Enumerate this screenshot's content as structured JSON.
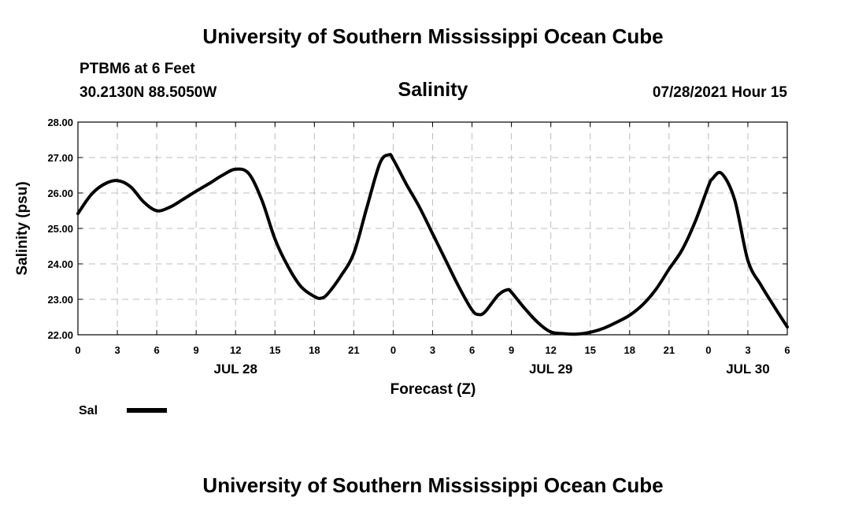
{
  "page": {
    "title_top": "University of Southern Mississippi Ocean Cube",
    "title_bottom": "University of Southern Mississippi Ocean Cube",
    "station": "PTBM6 at 6 Feet",
    "coords": "30.2130N  88.5050W",
    "subtitle": "Salinity",
    "timestamp": "07/28/2021 Hour 15"
  },
  "chart_data": {
    "type": "line",
    "title": "Salinity",
    "xlabel": "Forecast (Z)",
    "ylabel": "Salinity (psu)",
    "xlim": [
      0,
      54
    ],
    "ylim": [
      22,
      28
    ],
    "y_ticks": [
      22,
      23,
      24,
      25,
      26,
      27,
      28
    ],
    "y_tick_labels": [
      "22.00",
      "23.00",
      "24.00",
      "25.00",
      "26.00",
      "27.00",
      "28.00"
    ],
    "x_ticks": [
      0,
      3,
      6,
      9,
      12,
      15,
      18,
      21,
      24,
      27,
      30,
      33,
      36,
      39,
      42,
      45,
      48,
      51,
      54
    ],
    "x_tick_labels": [
      "0",
      "3",
      "6",
      "9",
      "12",
      "15",
      "18",
      "21",
      "0",
      "3",
      "6",
      "9",
      "12",
      "15",
      "18",
      "21",
      "0",
      "3",
      "6"
    ],
    "day_labels": [
      {
        "x": 12,
        "label": "JUL 28"
      },
      {
        "x": 36,
        "label": "JUL 29"
      },
      {
        "x": 51,
        "label": "JUL 30"
      }
    ],
    "grid": true,
    "legend": [
      {
        "name": "Sal",
        "color": "#000000"
      }
    ],
    "series": [
      {
        "name": "Sal",
        "color": "#000000",
        "x": [
          0,
          1,
          2,
          3,
          4,
          5,
          6,
          7,
          8,
          9,
          10,
          11,
          12,
          13,
          14,
          15,
          16,
          17,
          18,
          18.5,
          19,
          20,
          21,
          22,
          23,
          23.7,
          24,
          25,
          26,
          27,
          28,
          29,
          30,
          30.5,
          31,
          32,
          32.7,
          33,
          34,
          35,
          36,
          37,
          38,
          39,
          40,
          41,
          42,
          43,
          44,
          45,
          46,
          47,
          48,
          48.3,
          49,
          50,
          51,
          52,
          53,
          54
        ],
        "values": [
          25.42,
          25.95,
          26.25,
          26.35,
          26.18,
          25.75,
          25.5,
          25.6,
          25.82,
          26.05,
          26.27,
          26.5,
          26.67,
          26.55,
          25.8,
          24.7,
          23.92,
          23.35,
          23.08,
          23.03,
          23.15,
          23.65,
          24.3,
          25.6,
          26.85,
          27.08,
          26.95,
          26.25,
          25.6,
          24.85,
          24.1,
          23.35,
          22.7,
          22.57,
          22.65,
          23.12,
          23.27,
          23.2,
          22.75,
          22.35,
          22.08,
          22.03,
          22.02,
          22.07,
          22.18,
          22.35,
          22.55,
          22.85,
          23.28,
          23.85,
          24.4,
          25.2,
          26.2,
          26.4,
          26.55,
          25.8,
          24.1,
          23.4,
          22.8,
          22.22
        ]
      }
    ]
  }
}
